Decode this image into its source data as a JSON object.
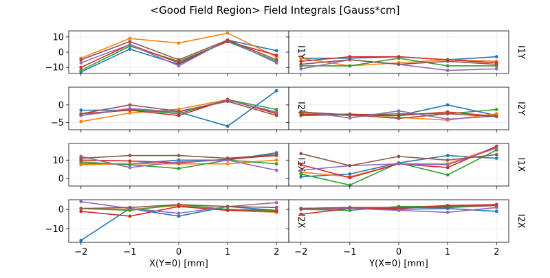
{
  "chart_data": {
    "type": "line",
    "title": "<Good Field Region> Field Integrals [Gauss*cm]",
    "x": [
      -2,
      -1,
      0,
      1,
      2
    ],
    "series_colors": [
      "#1f77b4",
      "#ff7f0e",
      "#2ca02c",
      "#d62728",
      "#9467bd",
      "#8c564b"
    ],
    "columns": [
      {
        "xlabel": "X(Y=0) [mm]",
        "xticks": [
          "−2",
          "−1",
          "0",
          "1",
          "2"
        ]
      },
      {
        "xlabel": "Y(X=0) [mm]",
        "xticks": [
          "−2",
          "−1",
          "0",
          "1",
          "2"
        ]
      }
    ],
    "rows": [
      {
        "label": "I1Y",
        "ylim": [
          -14,
          14
        ],
        "yticks": [
          {
            "v": 10,
            "t": "10"
          },
          {
            "v": 0,
            "t": "0"
          },
          {
            "v": -10,
            "t": "−10"
          }
        ],
        "panels": [
          [
            [
              -13,
              2,
              -8,
              8,
              1
            ],
            [
              -4,
              9,
              6,
              12.5,
              -3
            ],
            [
              -12,
              4,
              -6,
              7,
              -6
            ],
            [
              -10,
              5,
              -7,
              7,
              -2
            ],
            [
              -7,
              5,
              -9,
              8,
              -7
            ],
            [
              -5,
              7,
              -5,
              8,
              -5
            ]
          ],
          [
            [
              -4,
              -4,
              -3,
              -5,
              -3
            ],
            [
              -4,
              -9,
              -7,
              -5,
              -6
            ],
            [
              -9,
              -9,
              -4,
              -9,
              -9
            ],
            [
              -6,
              -3,
              -3,
              -5,
              -7
            ],
            [
              -11,
              -5,
              -8,
              -12,
              -11
            ],
            [
              -8,
              -5,
              -8,
              -6,
              -8
            ]
          ]
        ]
      },
      {
        "label": "I2Y",
        "ylim": [
          -7,
          5
        ],
        "yticks": [
          {
            "v": 0,
            "t": "0"
          },
          {
            "v": -5,
            "t": "−5"
          }
        ],
        "panels": [
          [
            [
              -1.5,
              -1.5,
              -2,
              -6,
              4
            ],
            [
              -4.7,
              -2.3,
              -1.2,
              1.5,
              -2.3
            ],
            [
              -3,
              -1.2,
              -2.5,
              1.5,
              -1.3
            ],
            [
              -2.5,
              -1.5,
              -3,
              1.5,
              -2.5
            ],
            [
              -3,
              -1,
              -2,
              1.3,
              -2
            ],
            [
              -2.5,
              0,
              -1.8,
              1,
              -3
            ]
          ],
          [
            [
              -2,
              -3,
              -3,
              0,
              -3
            ],
            [
              -2.3,
              -3,
              -3.5,
              -4.3,
              -2.5
            ],
            [
              -3,
              -2.8,
              -2.5,
              -2.5,
              -1.3
            ],
            [
              -2.7,
              -2.6,
              -3,
              -2,
              -3.2
            ],
            [
              -1.8,
              -3.7,
              -1.7,
              -4,
              -3.2
            ],
            [
              -2,
              -2.8,
              -3.8,
              -2.5,
              -3.3
            ]
          ]
        ]
      },
      {
        "label": "I1X",
        "ylim": [
          -4,
          19
        ],
        "yticks": [
          {
            "v": 10,
            "t": "10"
          },
          {
            "v": 0,
            "t": "0"
          }
        ],
        "panels": [
          [
            [
              8,
              8,
              10,
              10,
              14
            ],
            [
              7.5,
              8,
              8,
              8,
              10
            ],
            [
              9,
              7.5,
              5.5,
              10,
              8
            ],
            [
              10,
              9.5,
              8.5,
              10.5,
              12.5
            ],
            [
              12,
              6,
              9,
              10,
              4.5
            ],
            [
              11,
              12.5,
              12.5,
              11,
              13
            ]
          ],
          [
            [
              1,
              2.5,
              8.5,
              12.5,
              11
            ],
            [
              3.5,
              1,
              8,
              8,
              17
            ],
            [
              2.5,
              -3.5,
              8.5,
              2,
              15.5
            ],
            [
              7.5,
              0.5,
              8,
              6,
              17.5
            ],
            [
              4.5,
              7,
              8,
              7.5,
              16.5
            ],
            [
              13.5,
              7,
              12,
              10,
              13
            ]
          ]
        ]
      },
      {
        "label": "I2X",
        "ylim": [
          -17,
          5
        ],
        "yticks": [
          {
            "v": 0,
            "t": "0"
          },
          {
            "v": -10,
            "t": "−10"
          }
        ],
        "panels": [
          [
            [
              -16,
              0.5,
              -3.5,
              1.5,
              -0.5
            ],
            [
              0.5,
              0,
              2,
              -0.5,
              -1.5
            ],
            [
              0.5,
              -0.5,
              2.5,
              0,
              -0.5
            ],
            [
              -1,
              -3.5,
              1.5,
              -0.5,
              -1
            ],
            [
              4,
              0.5,
              -2,
              1.5,
              3.5
            ],
            [
              0.5,
              1,
              2.5,
              1.5,
              1
            ]
          ],
          [
            [
              0.5,
              1,
              0,
              0.5,
              -1
            ],
            [
              0.5,
              0.5,
              1,
              2,
              2
            ],
            [
              0,
              -0.5,
              1.5,
              1.5,
              2.5
            ],
            [
              -2.5,
              0.5,
              0.5,
              2,
              2.5
            ],
            [
              0,
              0.5,
              -0.5,
              -1.5,
              1
            ],
            [
              0.5,
              1,
              1,
              1,
              2
            ]
          ]
        ]
      }
    ]
  }
}
